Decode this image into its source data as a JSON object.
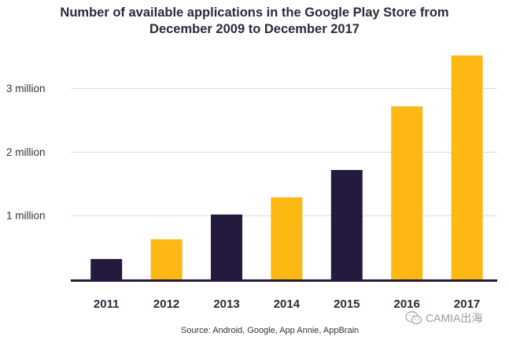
{
  "chart_data": {
    "type": "bar",
    "title": "Number of available applications in the Google Play Store from\nDecember 2009 to December 2017",
    "categories": [
      "2011",
      "2012",
      "2013",
      "2014",
      "2015",
      "2016",
      "2017"
    ],
    "values": [
      320000,
      630000,
      1020000,
      1290000,
      1720000,
      2720000,
      3520000
    ],
    "bar_colors": [
      "#241a3d",
      "#fdb813",
      "#241a3d",
      "#fdb813",
      "#241a3d",
      "#fdb813",
      "#fdb813"
    ],
    "yticks": [
      {
        "value": 1000000,
        "label": "1 million"
      },
      {
        "value": 2000000,
        "label": "2 million"
      },
      {
        "value": 3000000,
        "label": "3 million"
      }
    ],
    "ylim": [
      0,
      3600000
    ],
    "xlabel": "",
    "ylabel": "",
    "grid": "horizontal",
    "source": "Source: Android, Google, App Annie, AppBrain"
  },
  "watermark": {
    "text": "CAMIA出海",
    "icon": "wechat-icon"
  }
}
